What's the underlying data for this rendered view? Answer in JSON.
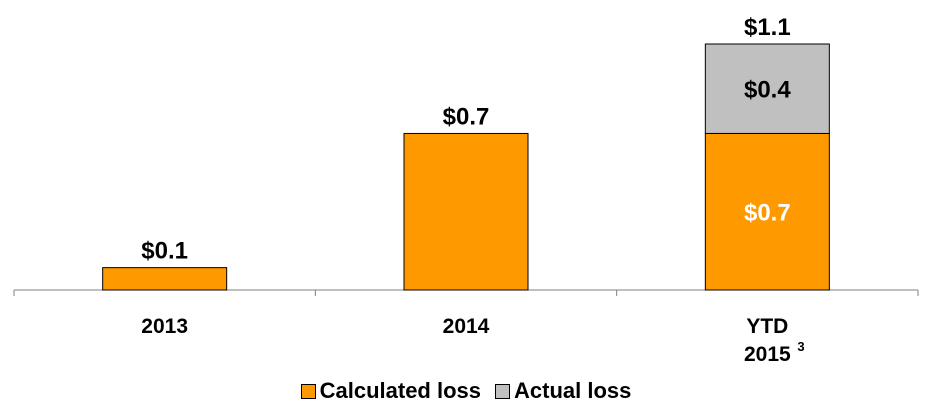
{
  "chart_data": {
    "type": "bar",
    "stacked": true,
    "categories": [
      "2013",
      "2014",
      "YTD 2015"
    ],
    "category_footnotes": [
      "",
      "",
      "3"
    ],
    "series": [
      {
        "name": "Calculated loss",
        "values": [
          0.1,
          0.7,
          0.7
        ],
        "color": "#FF9900"
      },
      {
        "name": "Actual loss",
        "values": [
          0,
          0,
          0.4
        ],
        "color": "#C0C0C0"
      }
    ],
    "totals": [
      "$0.1",
      "$0.7",
      "$1.1"
    ],
    "segment_labels": [
      [
        "",
        "",
        "$0.7"
      ],
      [
        "",
        "",
        "$0.4"
      ]
    ],
    "ylim": [
      0,
      1.1
    ],
    "legend_position": "bottom",
    "grid": false
  }
}
